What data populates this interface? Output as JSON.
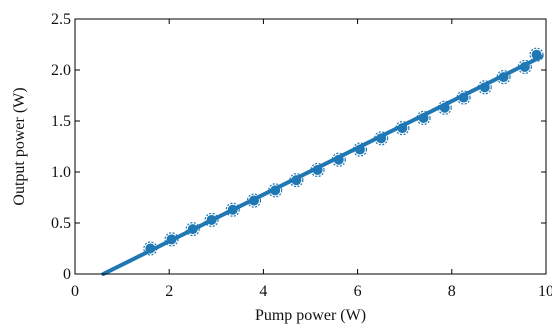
{
  "chart_data": {
    "type": "scatter",
    "title": "",
    "xlabel": "Pump power (W)",
    "ylabel": "Output power (W)",
    "xlim": [
      0,
      10
    ],
    "ylim": [
      0,
      2.5
    ],
    "xticks": [
      0,
      2,
      4,
      6,
      8,
      10
    ],
    "yticks": [
      0,
      0.5,
      1.0,
      1.5,
      2.0,
      2.5
    ],
    "xtick_labels": [
      "0",
      "2",
      "4",
      "6",
      "8",
      "10"
    ],
    "ytick_labels": [
      "0",
      "0.5",
      "1.0",
      "1.5",
      "2.0",
      "2.5"
    ],
    "grid": false,
    "color": "#1f77b4",
    "series": [
      {
        "kind": "points",
        "x": [
          1.6,
          2.05,
          2.5,
          2.9,
          3.35,
          3.8,
          4.25,
          4.7,
          5.15,
          5.6,
          6.05,
          6.5,
          6.95,
          7.4,
          7.85,
          8.25,
          8.7,
          9.1,
          9.55,
          9.8
        ],
        "y": [
          0.25,
          0.34,
          0.44,
          0.53,
          0.63,
          0.72,
          0.82,
          0.92,
          1.02,
          1.12,
          1.22,
          1.33,
          1.43,
          1.53,
          1.63,
          1.73,
          1.83,
          1.93,
          2.03,
          2.15
        ]
      },
      {
        "kind": "fit-line",
        "x": [
          0.6,
          9.9
        ],
        "y": [
          0.0,
          2.13
        ]
      }
    ]
  }
}
